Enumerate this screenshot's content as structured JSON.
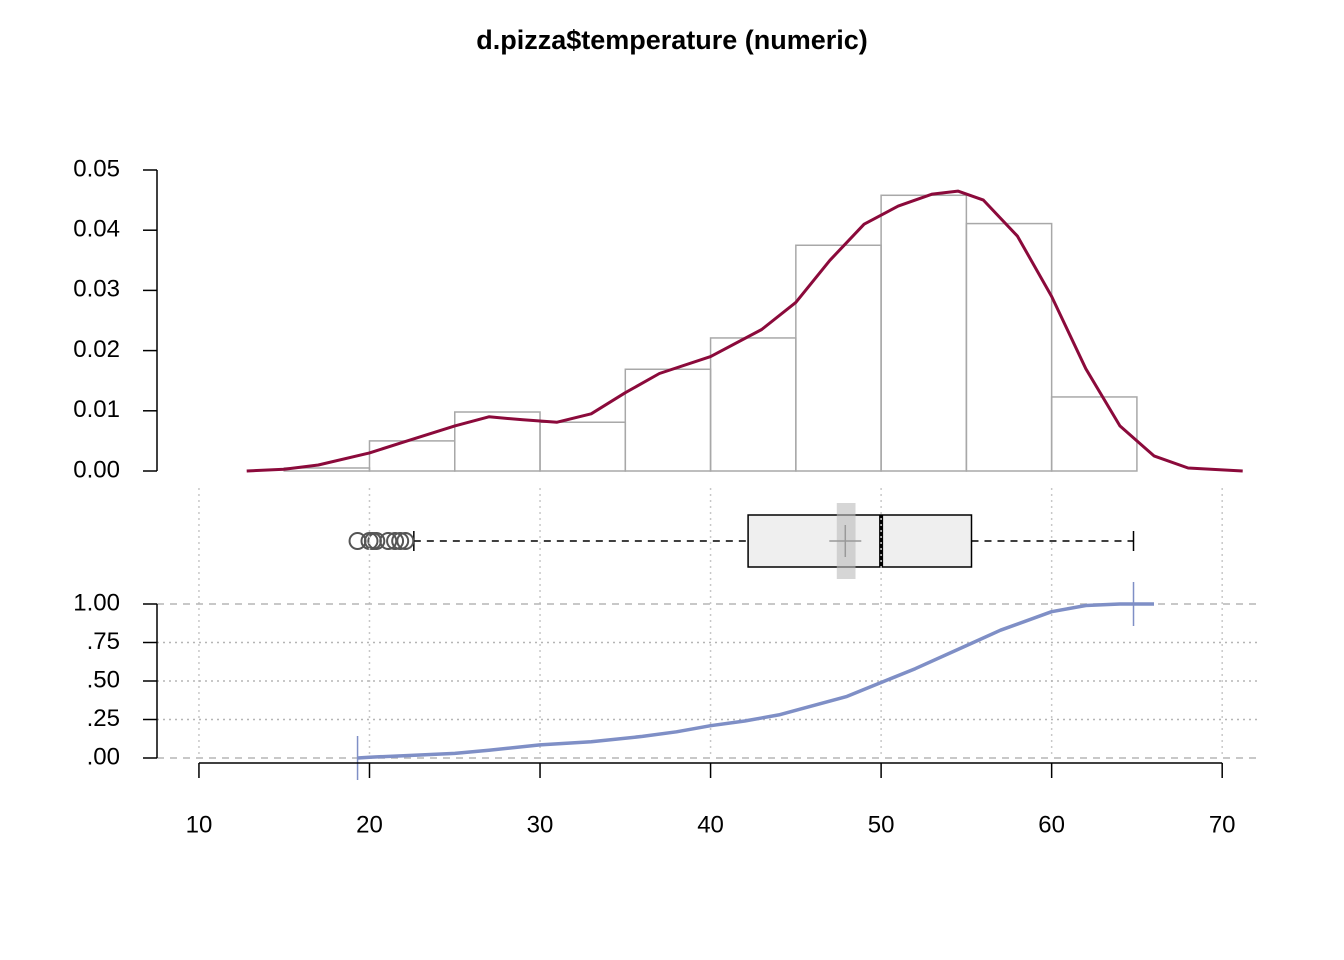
{
  "chart_data": [
    {
      "type": "histogram",
      "title": "d.pizza$temperature (numeric)",
      "bins": [
        15,
        20,
        25,
        30,
        35,
        40,
        45,
        50,
        55,
        60,
        65
      ],
      "values": [
        0.0005,
        0.005,
        0.0098,
        0.0081,
        0.0169,
        0.0221,
        0.0375,
        0.0458,
        0.0411,
        0.0123
      ],
      "bar_color": "#a8a8a8",
      "density": {
        "color": "#8b0a3b",
        "x": [
          12.8,
          15,
          17,
          20,
          22,
          25,
          27,
          29,
          31,
          33,
          35,
          37,
          40,
          43,
          45,
          47,
          49,
          51,
          53,
          54.5,
          56,
          58,
          60,
          62,
          64,
          66,
          68,
          71.2
        ],
        "y": [
          0,
          0.0003,
          0.001,
          0.003,
          0.0048,
          0.0075,
          0.009,
          0.0085,
          0.0081,
          0.0095,
          0.013,
          0.0162,
          0.019,
          0.0235,
          0.028,
          0.035,
          0.041,
          0.044,
          0.046,
          0.0465,
          0.045,
          0.039,
          0.029,
          0.017,
          0.0075,
          0.0025,
          0.0005,
          0
        ]
      },
      "xlim": [
        7.54,
        72.1
      ],
      "ylim": [
        0,
        0.05
      ],
      "yticks": [
        {
          "value": 0,
          "label": "0.00"
        },
        {
          "value": 0.01,
          "label": "0.01"
        },
        {
          "value": 0.02,
          "label": "0.02"
        },
        {
          "value": 0.03,
          "label": "0.03"
        },
        {
          "value": 0.04,
          "label": "0.04"
        },
        {
          "value": 0.05,
          "label": "0.05"
        }
      ]
    },
    {
      "type": "boxplot",
      "whisker_low": 22.6,
      "q1": 42.2,
      "median": 50,
      "q3": 55.3,
      "whisker_high": 64.8,
      "mean": 47.9,
      "mean_ci": [
        47.4,
        48.5
      ],
      "outliers": [
        19.3,
        20.0,
        20.2,
        20.4,
        21.1,
        21.5,
        21.8,
        22.1
      ],
      "xlim": [
        7.54,
        72.1
      ]
    },
    {
      "type": "ecdf",
      "color": "#7f8fc6",
      "x": [
        19.3,
        20,
        22,
        25,
        27,
        30,
        33,
        36,
        38,
        40,
        42,
        44,
        45,
        48,
        50,
        52,
        55,
        57,
        60,
        62,
        64,
        66
      ],
      "y": [
        0,
        0.005,
        0.015,
        0.03,
        0.05,
        0.085,
        0.105,
        0.14,
        0.17,
        0.21,
        0.24,
        0.28,
        0.31,
        0.4,
        0.49,
        0.58,
        0.73,
        0.83,
        0.95,
        0.99,
        1,
        1
      ],
      "range_marks": [
        19.3,
        64.8
      ],
      "xlim": [
        7.54,
        72.1
      ],
      "ylim": [
        0,
        1
      ],
      "yticks": [
        {
          "value": 0,
          "label": ".00"
        },
        {
          "value": 0.25,
          "label": ".25"
        },
        {
          "value": 0.5,
          "label": ".50"
        },
        {
          "value": 0.75,
          "label": ".75"
        },
        {
          "value": 1,
          "label": "1.00"
        }
      ],
      "xticks": [
        10,
        20,
        30,
        40,
        50,
        60,
        70
      ],
      "grid": true
    }
  ]
}
